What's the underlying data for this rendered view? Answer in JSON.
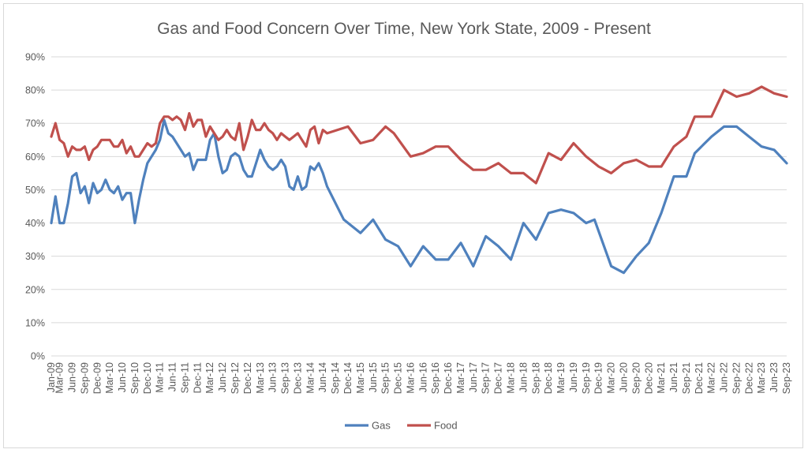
{
  "chart_data": {
    "type": "line",
    "title": "Gas and Food Concern Over Time, New York State, 2009 - Present",
    "xlabel": "",
    "ylabel": "",
    "ylim": [
      0,
      90
    ],
    "y_ticks": [
      "0%",
      "10%",
      "20%",
      "30%",
      "40%",
      "50%",
      "60%",
      "70%",
      "80%",
      "90%"
    ],
    "x_range": [
      "2009-01",
      "2023-09"
    ],
    "x_tick_labels": [
      "Jan-09",
      "Mar-09",
      "Jun-09",
      "Sep-09",
      "Dec-09",
      "Mar-10",
      "Jun-10",
      "Sep-10",
      "Dec-10",
      "Mar-11",
      "Jun-11",
      "Sep-11",
      "Dec-11",
      "Mar-12",
      "Jun-12",
      "Sep-12",
      "Dec-12",
      "Mar-13",
      "Jun-13",
      "Sep-13",
      "Dec-13",
      "Mar-14",
      "Jun-14",
      "Sep-14",
      "Dec-14",
      "Mar-15",
      "Jun-15",
      "Sep-15",
      "Dec-15",
      "Mar-16",
      "Jun-16",
      "Sep-16",
      "Dec-16",
      "Mar-17",
      "Jun-17",
      "Sep-17",
      "Dec-17",
      "Mar-18",
      "Jun-18",
      "Sep-18",
      "Dec-18",
      "Mar-19",
      "Jun-19",
      "Sep-19",
      "Dec-19",
      "Mar-20",
      "Jun-20",
      "Sep-20",
      "Dec-20",
      "Mar-21",
      "Jun-21",
      "Sep-21",
      "Dec-21",
      "Mar-22",
      "Jun-22",
      "Sep-22",
      "Dec-22",
      "Mar-23",
      "Jun-23",
      "Sep-23"
    ],
    "grid": "horizontal",
    "legend_position": "bottom",
    "series": [
      {
        "name": "Gas",
        "color": "#4f81bd",
        "points": [
          [
            "2009-01",
            40
          ],
          [
            "2009-02",
            48
          ],
          [
            "2009-03",
            40
          ],
          [
            "2009-04",
            40
          ],
          [
            "2009-05",
            46
          ],
          [
            "2009-06",
            54
          ],
          [
            "2009-07",
            55
          ],
          [
            "2009-08",
            49
          ],
          [
            "2009-09",
            51
          ],
          [
            "2009-10",
            46
          ],
          [
            "2009-11",
            52
          ],
          [
            "2009-12",
            49
          ],
          [
            "2010-01",
            50
          ],
          [
            "2010-02",
            53
          ],
          [
            "2010-03",
            50
          ],
          [
            "2010-04",
            49
          ],
          [
            "2010-05",
            51
          ],
          [
            "2010-06",
            47
          ],
          [
            "2010-07",
            49
          ],
          [
            "2010-08",
            49
          ],
          [
            "2010-09",
            40
          ],
          [
            "2010-10",
            47
          ],
          [
            "2010-11",
            53
          ],
          [
            "2010-12",
            58
          ],
          [
            "2011-01",
            60
          ],
          [
            "2011-02",
            62
          ],
          [
            "2011-03",
            65
          ],
          [
            "2011-04",
            71
          ],
          [
            "2011-05",
            67
          ],
          [
            "2011-06",
            66
          ],
          [
            "2011-07",
            64
          ],
          [
            "2011-08",
            62
          ],
          [
            "2011-09",
            60
          ],
          [
            "2011-10",
            61
          ],
          [
            "2011-11",
            56
          ],
          [
            "2011-12",
            59
          ],
          [
            "2012-01",
            59
          ],
          [
            "2012-02",
            59
          ],
          [
            "2012-03",
            65
          ],
          [
            "2012-04",
            67
          ],
          [
            "2012-05",
            60
          ],
          [
            "2012-06",
            55
          ],
          [
            "2012-07",
            56
          ],
          [
            "2012-08",
            60
          ],
          [
            "2012-09",
            61
          ],
          [
            "2012-10",
            60
          ],
          [
            "2012-11",
            56
          ],
          [
            "2012-12",
            54
          ],
          [
            "2013-01",
            54
          ],
          [
            "2013-02",
            58
          ],
          [
            "2013-03",
            62
          ],
          [
            "2013-04",
            59
          ],
          [
            "2013-05",
            57
          ],
          [
            "2013-06",
            56
          ],
          [
            "2013-07",
            57
          ],
          [
            "2013-08",
            59
          ],
          [
            "2013-09",
            57
          ],
          [
            "2013-10",
            51
          ],
          [
            "2013-11",
            50
          ],
          [
            "2013-12",
            54
          ],
          [
            "2014-01",
            50
          ],
          [
            "2014-02",
            51
          ],
          [
            "2014-03",
            57
          ],
          [
            "2014-04",
            56
          ],
          [
            "2014-05",
            58
          ],
          [
            "2014-06",
            55
          ],
          [
            "2014-07",
            51
          ],
          [
            "2014-09",
            46
          ],
          [
            "2014-11",
            41
          ],
          [
            "2015-03",
            37
          ],
          [
            "2015-06",
            41
          ],
          [
            "2015-09",
            35
          ],
          [
            "2015-12",
            33
          ],
          [
            "2016-03",
            27
          ],
          [
            "2016-06",
            33
          ],
          [
            "2016-09",
            29
          ],
          [
            "2016-12",
            29
          ],
          [
            "2017-03",
            34
          ],
          [
            "2017-06",
            27
          ],
          [
            "2017-09",
            36
          ],
          [
            "2017-12",
            33
          ],
          [
            "2018-03",
            29
          ],
          [
            "2018-06",
            40
          ],
          [
            "2018-09",
            35
          ],
          [
            "2018-12",
            43
          ],
          [
            "2019-03",
            44
          ],
          [
            "2019-06",
            43
          ],
          [
            "2019-09",
            40
          ],
          [
            "2019-11",
            41
          ],
          [
            "2020-03",
            27
          ],
          [
            "2020-06",
            25
          ],
          [
            "2020-09",
            30
          ],
          [
            "2020-12",
            34
          ],
          [
            "2021-03",
            43
          ],
          [
            "2021-06",
            54
          ],
          [
            "2021-09",
            54
          ],
          [
            "2021-11",
            61
          ],
          [
            "2022-03",
            66
          ],
          [
            "2022-06",
            69
          ],
          [
            "2022-09",
            69
          ],
          [
            "2022-12",
            66
          ],
          [
            "2023-03",
            63
          ],
          [
            "2023-06",
            62
          ],
          [
            "2023-09",
            58
          ]
        ]
      },
      {
        "name": "Food",
        "color": "#c0504d",
        "points": [
          [
            "2009-01",
            66
          ],
          [
            "2009-02",
            70
          ],
          [
            "2009-03",
            65
          ],
          [
            "2009-04",
            64
          ],
          [
            "2009-05",
            60
          ],
          [
            "2009-06",
            63
          ],
          [
            "2009-07",
            62
          ],
          [
            "2009-08",
            62
          ],
          [
            "2009-09",
            63
          ],
          [
            "2009-10",
            59
          ],
          [
            "2009-11",
            62
          ],
          [
            "2009-12",
            63
          ],
          [
            "2010-01",
            65
          ],
          [
            "2010-02",
            65
          ],
          [
            "2010-03",
            65
          ],
          [
            "2010-04",
            63
          ],
          [
            "2010-05",
            63
          ],
          [
            "2010-06",
            65
          ],
          [
            "2010-07",
            61
          ],
          [
            "2010-08",
            63
          ],
          [
            "2010-09",
            60
          ],
          [
            "2010-10",
            60
          ],
          [
            "2010-11",
            62
          ],
          [
            "2010-12",
            64
          ],
          [
            "2011-01",
            63
          ],
          [
            "2011-02",
            64
          ],
          [
            "2011-03",
            70
          ],
          [
            "2011-04",
            72
          ],
          [
            "2011-05",
            72
          ],
          [
            "2011-06",
            71
          ],
          [
            "2011-07",
            72
          ],
          [
            "2011-08",
            71
          ],
          [
            "2011-09",
            68
          ],
          [
            "2011-10",
            73
          ],
          [
            "2011-11",
            69
          ],
          [
            "2011-12",
            71
          ],
          [
            "2012-01",
            71
          ],
          [
            "2012-02",
            66
          ],
          [
            "2012-03",
            69
          ],
          [
            "2012-04",
            67
          ],
          [
            "2012-05",
            65
          ],
          [
            "2012-06",
            66
          ],
          [
            "2012-07",
            68
          ],
          [
            "2012-08",
            66
          ],
          [
            "2012-09",
            65
          ],
          [
            "2012-10",
            70
          ],
          [
            "2012-11",
            62
          ],
          [
            "2012-12",
            66
          ],
          [
            "2013-01",
            71
          ],
          [
            "2013-02",
            68
          ],
          [
            "2013-03",
            68
          ],
          [
            "2013-04",
            70
          ],
          [
            "2013-05",
            68
          ],
          [
            "2013-06",
            67
          ],
          [
            "2013-07",
            65
          ],
          [
            "2013-08",
            67
          ],
          [
            "2013-09",
            66
          ],
          [
            "2013-10",
            65
          ],
          [
            "2013-11",
            66
          ],
          [
            "2013-12",
            67
          ],
          [
            "2014-01",
            65
          ],
          [
            "2014-02",
            63
          ],
          [
            "2014-03",
            68
          ],
          [
            "2014-04",
            69
          ],
          [
            "2014-05",
            64
          ],
          [
            "2014-06",
            68
          ],
          [
            "2014-07",
            67
          ],
          [
            "2014-12",
            69
          ],
          [
            "2015-03",
            64
          ],
          [
            "2015-06",
            65
          ],
          [
            "2015-09",
            69
          ],
          [
            "2015-11",
            67
          ],
          [
            "2016-03",
            60
          ],
          [
            "2016-06",
            61
          ],
          [
            "2016-09",
            63
          ],
          [
            "2016-12",
            63
          ],
          [
            "2017-03",
            59
          ],
          [
            "2017-06",
            56
          ],
          [
            "2017-09",
            56
          ],
          [
            "2017-12",
            58
          ],
          [
            "2018-03",
            55
          ],
          [
            "2018-06",
            55
          ],
          [
            "2018-09",
            52
          ],
          [
            "2018-12",
            61
          ],
          [
            "2019-03",
            59
          ],
          [
            "2019-06",
            64
          ],
          [
            "2019-09",
            60
          ],
          [
            "2019-12",
            57
          ],
          [
            "2020-03",
            55
          ],
          [
            "2020-06",
            58
          ],
          [
            "2020-09",
            59
          ],
          [
            "2020-12",
            57
          ],
          [
            "2021-03",
            57
          ],
          [
            "2021-06",
            63
          ],
          [
            "2021-09",
            66
          ],
          [
            "2021-11",
            72
          ],
          [
            "2022-03",
            72
          ],
          [
            "2022-06",
            80
          ],
          [
            "2022-09",
            78
          ],
          [
            "2022-12",
            79
          ],
          [
            "2023-03",
            81
          ],
          [
            "2023-06",
            79
          ],
          [
            "2023-09",
            78
          ]
        ]
      }
    ]
  }
}
